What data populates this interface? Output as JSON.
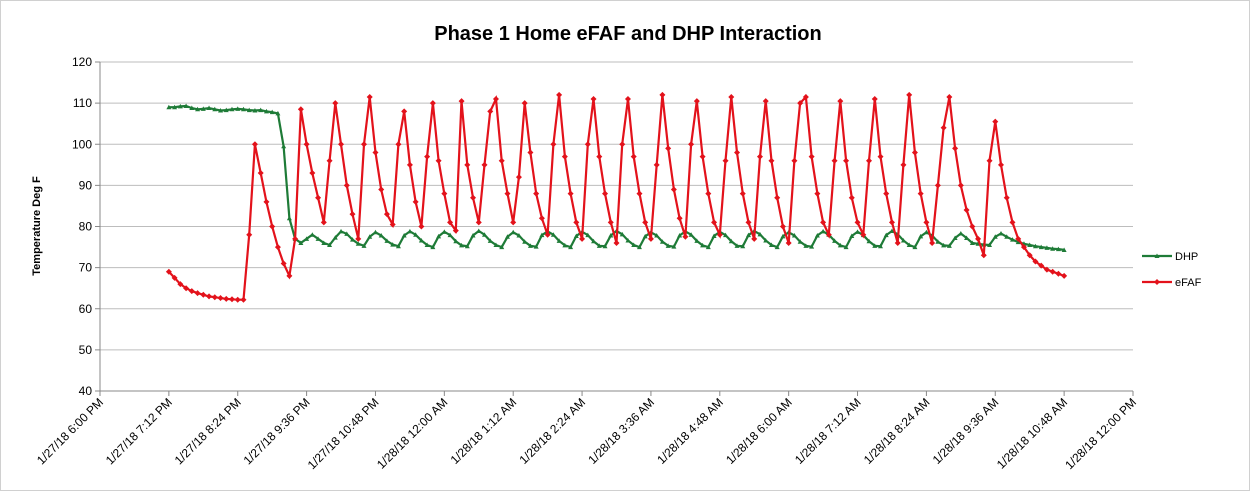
{
  "chart_data": {
    "type": "line",
    "title": "Phase 1 Home eFAF and DHP Interaction",
    "y_label": "Temperature Deg F",
    "x": [
      "1/27/18 7:12 PM",
      "1/27/18 7:18 PM",
      "1/27/18 7:24 PM",
      "1/27/18 7:30 PM",
      "1/27/18 7:36 PM",
      "1/27/18 7:42 PM",
      "1/27/18 7:48 PM",
      "1/27/18 7:54 PM",
      "1/27/18 8:00 PM",
      "1/27/18 8:06 PM",
      "1/27/18 8:12 PM",
      "1/27/18 8:18 PM",
      "1/27/18 8:24 PM",
      "1/27/18 8:30 PM",
      "1/27/18 8:36 PM",
      "1/27/18 8:42 PM",
      "1/27/18 8:48 PM",
      "1/27/18 8:54 PM",
      "1/27/18 9:00 PM",
      "1/27/18 9:06 PM",
      "1/27/18 9:12 PM",
      "1/27/18 9:18 PM",
      "1/27/18 9:24 PM",
      "1/27/18 9:30 PM",
      "1/27/18 9:36 PM",
      "1/27/18 9:42 PM",
      "1/27/18 9:48 PM",
      "1/27/18 9:54 PM",
      "1/27/18 10:00 PM",
      "1/27/18 10:06 PM",
      "1/27/18 10:12 PM",
      "1/27/18 10:18 PM",
      "1/27/18 10:24 PM",
      "1/27/18 10:30 PM",
      "1/27/18 10:36 PM",
      "1/27/18 10:42 PM",
      "1/27/18 10:48 PM",
      "1/27/18 10:54 PM",
      "1/27/18 11:00 PM",
      "1/27/18 11:06 PM",
      "1/27/18 11:12 PM",
      "1/27/18 11:18 PM",
      "1/27/18 11:24 PM",
      "1/27/18 11:30 PM",
      "1/27/18 11:36 PM",
      "1/27/18 11:42 PM",
      "1/27/18 11:48 PM",
      "1/27/18 11:54 PM",
      "1/28/18 12:00 AM",
      "1/28/18 12:06 AM",
      "1/28/18 12:12 AM",
      "1/28/18 12:18 AM",
      "1/28/18 12:24 AM",
      "1/28/18 12:30 AM",
      "1/28/18 12:36 AM",
      "1/28/18 12:42 AM",
      "1/28/18 12:48 AM",
      "1/28/18 12:54 AM",
      "1/28/18 1:00 AM",
      "1/28/18 1:06 AM",
      "1/28/18 1:12 AM",
      "1/28/18 1:18 AM",
      "1/28/18 1:24 AM",
      "1/28/18 1:30 AM",
      "1/28/18 1:36 AM",
      "1/28/18 1:42 AM",
      "1/28/18 1:48 AM",
      "1/28/18 1:54 AM",
      "1/28/18 2:00 AM",
      "1/28/18 2:06 AM",
      "1/28/18 2:12 AM",
      "1/28/18 2:18 AM",
      "1/28/18 2:24 AM",
      "1/28/18 2:30 AM",
      "1/28/18 2:36 AM",
      "1/28/18 2:42 AM",
      "1/28/18 2:48 AM",
      "1/28/18 2:54 AM",
      "1/28/18 3:00 AM",
      "1/28/18 3:06 AM",
      "1/28/18 3:12 AM",
      "1/28/18 3:18 AM",
      "1/28/18 3:24 AM",
      "1/28/18 3:30 AM",
      "1/28/18 3:36 AM",
      "1/28/18 3:42 AM",
      "1/28/18 3:48 AM",
      "1/28/18 3:54 AM",
      "1/28/18 4:00 AM",
      "1/28/18 4:06 AM",
      "1/28/18 4:12 AM",
      "1/28/18 4:18 AM",
      "1/28/18 4:24 AM",
      "1/28/18 4:30 AM",
      "1/28/18 4:36 AM",
      "1/28/18 4:42 AM",
      "1/28/18 4:48 AM",
      "1/28/18 4:54 AM",
      "1/28/18 5:00 AM",
      "1/28/18 5:06 AM",
      "1/28/18 5:12 AM",
      "1/28/18 5:18 AM",
      "1/28/18 5:24 AM",
      "1/28/18 5:30 AM",
      "1/28/18 5:36 AM",
      "1/28/18 5:42 AM",
      "1/28/18 5:48 AM",
      "1/28/18 5:54 AM",
      "1/28/18 6:00 AM",
      "1/28/18 6:06 AM",
      "1/28/18 6:12 AM",
      "1/28/18 6:18 AM",
      "1/28/18 6:24 AM",
      "1/28/18 6:30 AM",
      "1/28/18 6:36 AM",
      "1/28/18 6:42 AM",
      "1/28/18 6:48 AM",
      "1/28/18 6:54 AM",
      "1/28/18 7:00 AM",
      "1/28/18 7:06 AM",
      "1/28/18 7:12 AM",
      "1/28/18 7:18 AM",
      "1/28/18 7:24 AM",
      "1/28/18 7:30 AM",
      "1/28/18 7:36 AM",
      "1/28/18 7:42 AM",
      "1/28/18 7:48 AM",
      "1/28/18 7:54 AM",
      "1/28/18 8:00 AM",
      "1/28/18 8:06 AM",
      "1/28/18 8:12 AM",
      "1/28/18 8:18 AM",
      "1/28/18 8:24 AM",
      "1/28/18 8:30 AM",
      "1/28/18 8:36 AM",
      "1/28/18 8:42 AM",
      "1/28/18 8:48 AM",
      "1/28/18 8:54 AM",
      "1/28/18 9:00 AM",
      "1/28/18 9:06 AM",
      "1/28/18 9:12 AM",
      "1/28/18 9:18 AM",
      "1/28/18 9:24 AM",
      "1/28/18 9:30 AM",
      "1/28/18 9:36 AM",
      "1/28/18 9:42 AM",
      "1/28/18 9:48 AM",
      "1/28/18 9:54 AM",
      "1/28/18 10:00 AM",
      "1/28/18 10:06 AM",
      "1/28/18 10:12 AM",
      "1/28/18 10:18 AM",
      "1/28/18 10:24 AM",
      "1/28/18 10:30 AM",
      "1/28/18 10:36 AM",
      "1/28/18 10:42 AM",
      "1/28/18 10:48 AM"
    ],
    "series": [
      {
        "name": "DHP",
        "color": "#1e7b37",
        "marker": "triangle",
        "values": [
          109,
          109,
          109.2,
          109.3,
          108.8,
          108.5,
          108.6,
          108.8,
          108.5,
          108.2,
          108.3,
          108.5,
          108.6,
          108.5,
          108.3,
          108.2,
          108.3,
          108,
          107.8,
          107.5,
          99.5,
          82,
          77,
          76,
          77,
          78,
          77,
          76,
          75.5,
          77.3,
          78.8,
          78.2,
          76.8,
          75.8,
          75.3,
          77.5,
          78.6,
          77.8,
          76.5,
          75.6,
          75.2,
          77.8,
          78.8,
          78,
          76.6,
          75.5,
          75,
          77.6,
          78.7,
          77.9,
          76.4,
          75.4,
          75.2,
          77.8,
          78.9,
          78,
          76.5,
          75.5,
          75,
          77.5,
          78.6,
          77.8,
          76.3,
          75.3,
          75.1,
          77.9,
          78.8,
          78,
          76.5,
          75.4,
          75,
          77.7,
          78.7,
          77.9,
          76.4,
          75.3,
          75.2,
          77.8,
          78.9,
          78.1,
          76.6,
          75.5,
          75,
          77.6,
          78.6,
          77.8,
          76.3,
          75.3,
          75.1,
          77.8,
          78.8,
          78,
          76.5,
          75.4,
          75,
          77.7,
          78.7,
          77.9,
          76.4,
          75.3,
          75.2,
          77.9,
          78.9,
          78.1,
          76.6,
          75.5,
          75,
          77.6,
          78.6,
          77.8,
          76.3,
          75.3,
          75.1,
          77.8,
          78.8,
          78,
          76.5,
          75.4,
          75,
          77.7,
          78.7,
          77.9,
          76.4,
          75.3,
          75.2,
          77.9,
          78.9,
          78.1,
          76.6,
          75.5,
          75,
          77.6,
          78.6,
          77.8,
          76.3,
          75.4,
          75.3,
          77.2,
          78.3,
          77.2,
          76,
          75.8,
          75.6,
          75.5,
          77.5,
          78.3,
          77.5,
          76.8,
          76.2,
          75.8,
          75.5,
          75.2,
          75,
          74.8,
          74.6,
          74.5,
          74.3
        ]
      },
      {
        "name": "eFAF",
        "color": "#e3121b",
        "marker": "diamond",
        "values": [
          69,
          67.5,
          66,
          65,
          64.3,
          63.8,
          63.4,
          63,
          62.8,
          62.6,
          62.4,
          62.3,
          62.2,
          62.2,
          78,
          100,
          93,
          86,
          80,
          75,
          71,
          68,
          77,
          108.5,
          100,
          93,
          87,
          81,
          96,
          110,
          100,
          90,
          83,
          77,
          100,
          111.5,
          98,
          89,
          83,
          80.5,
          100,
          108,
          95,
          86,
          80,
          97,
          110,
          96,
          88,
          81,
          79,
          110.5,
          95,
          87,
          81,
          95,
          108,
          111,
          96,
          88,
          81,
          92,
          110,
          98,
          88,
          82,
          78,
          100,
          112,
          97,
          88,
          81,
          77,
          100,
          111,
          97,
          88,
          81,
          76,
          100,
          111,
          97,
          88,
          81,
          77,
          95,
          112,
          99,
          89,
          82,
          77.5,
          100,
          110.5,
          97,
          88,
          81,
          78,
          96,
          111.5,
          98,
          88,
          81,
          77,
          97,
          110.5,
          96,
          87,
          80,
          76,
          96,
          110,
          111.5,
          97,
          88,
          81,
          78,
          96,
          110.5,
          96,
          87,
          81,
          78,
          96,
          111,
          97,
          88,
          81,
          76,
          95,
          112,
          98,
          88,
          81,
          76,
          90,
          104,
          111.5,
          99,
          90,
          84,
          80,
          77,
          73,
          96,
          105.5,
          95,
          87,
          81,
          77,
          75,
          73,
          71.5,
          70.5,
          69.5,
          69,
          68.5,
          68
        ]
      }
    ],
    "xlim": [
      "1/27/18 6:00 PM",
      "1/28/18 12:00 PM"
    ],
    "xticks": [
      "1/27/18 6:00 PM",
      "1/27/18 7:12 PM",
      "1/27/18 8:24 PM",
      "1/27/18 9:36 PM",
      "1/27/18 10:48 PM",
      "1/28/18 12:00 AM",
      "1/28/18 1:12 AM",
      "1/28/18 2:24 AM",
      "1/28/18 3:36 AM",
      "1/28/18 4:48 AM",
      "1/28/18 6:00 AM",
      "1/28/18 7:12 AM",
      "1/28/18 8:24 AM",
      "1/28/18 9:36 AM",
      "1/28/18 10:48 AM",
      "1/28/18 12:00 PM"
    ],
    "ylim": [
      40,
      120
    ],
    "yticks": [
      40,
      50,
      60,
      70,
      80,
      90,
      100,
      110,
      120
    ],
    "grid": true,
    "legend": "right"
  }
}
